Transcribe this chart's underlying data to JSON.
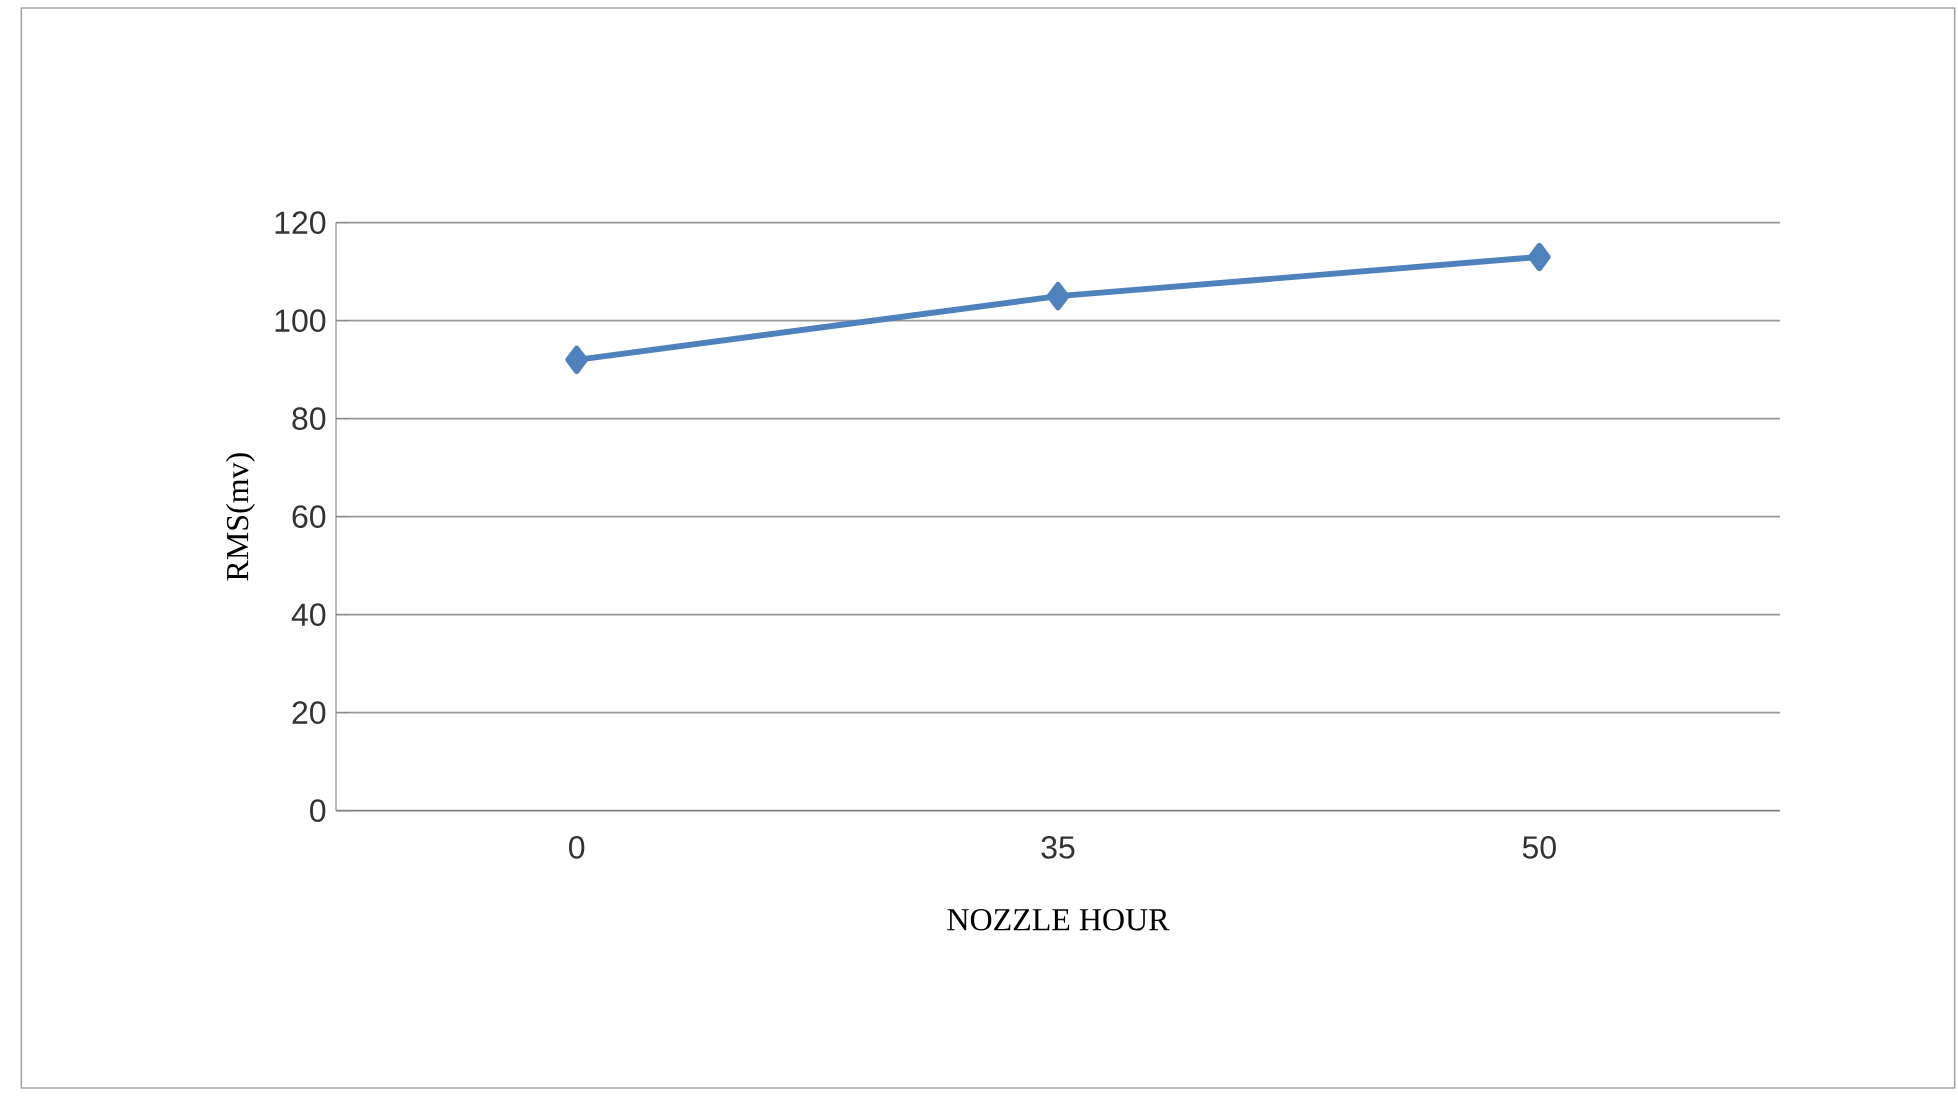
{
  "chart_data": {
    "type": "line",
    "xlabel": "NOZZLE HOUR",
    "ylabel": "RMS(mv)",
    "categories": [
      "0",
      "35",
      "50"
    ],
    "series": [
      {
        "color": "#4f81bd",
        "values": [
          92,
          105,
          113
        ]
      }
    ],
    "ylim": [
      0,
      120
    ],
    "yticks": [
      0,
      20,
      40,
      60,
      80,
      100,
      120
    ],
    "grid": "y",
    "marker": "diamond",
    "line_style": "solid"
  }
}
